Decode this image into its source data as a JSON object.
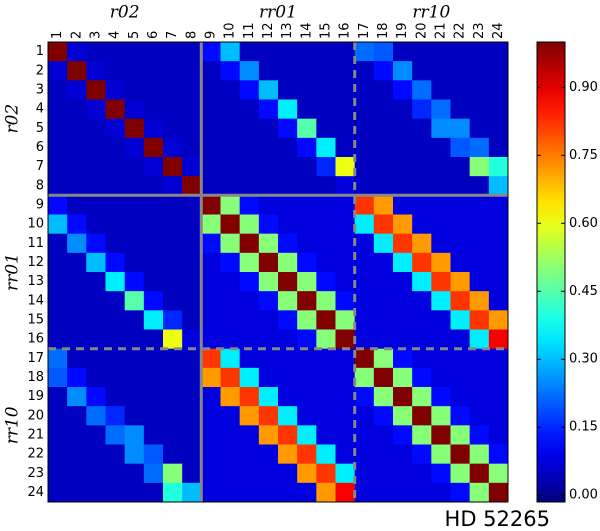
{
  "chart_data": {
    "type": "heatmap",
    "colormap": "jet",
    "group_labels": [
      "r02",
      "rr01",
      "rr10"
    ],
    "labels": [
      "1",
      "2",
      "3",
      "4",
      "5",
      "6",
      "7",
      "8",
      "9",
      "10",
      "11",
      "12",
      "13",
      "14",
      "15",
      "16",
      "17",
      "18",
      "19",
      "20",
      "21",
      "22",
      "23",
      "24"
    ],
    "values": [
      [
        1,
        0.07,
        0.05,
        0.05,
        0.05,
        0.05,
        0.05,
        0.05,
        0.12,
        0.3,
        0.05,
        0.05,
        0.05,
        0.05,
        0.05,
        0.05,
        0.22,
        0.2,
        0.05,
        0.05,
        0.05,
        0.05,
        0.05,
        0.05
      ],
      [
        0.07,
        1,
        0.07,
        0.05,
        0.05,
        0.05,
        0.05,
        0.05,
        0.05,
        0.12,
        0.25,
        0.05,
        0.05,
        0.05,
        0.05,
        0.05,
        0.05,
        0.12,
        0.25,
        0.05,
        0.05,
        0.05,
        0.05,
        0.05
      ],
      [
        0.05,
        0.07,
        1,
        0.07,
        0.05,
        0.05,
        0.05,
        0.05,
        0.05,
        0.05,
        0.12,
        0.3,
        0.05,
        0.05,
        0.05,
        0.05,
        0.05,
        0.05,
        0.12,
        0.22,
        0.05,
        0.05,
        0.05,
        0.05
      ],
      [
        0.05,
        0.05,
        0.07,
        1,
        0.07,
        0.05,
        0.05,
        0.05,
        0.05,
        0.05,
        0.05,
        0.12,
        0.35,
        0.05,
        0.05,
        0.05,
        0.05,
        0.05,
        0.05,
        0.15,
        0.22,
        0.05,
        0.05,
        0.05
      ],
      [
        0.05,
        0.05,
        0.05,
        0.07,
        1,
        0.07,
        0.05,
        0.05,
        0.05,
        0.05,
        0.05,
        0.05,
        0.12,
        0.45,
        0.05,
        0.05,
        0.05,
        0.05,
        0.05,
        0.05,
        0.25,
        0.25,
        0.05,
        0.05
      ],
      [
        0.05,
        0.05,
        0.05,
        0.05,
        0.07,
        1,
        0.07,
        0.05,
        0.05,
        0.05,
        0.05,
        0.05,
        0.05,
        0.12,
        0.35,
        0.05,
        0.05,
        0.05,
        0.05,
        0.05,
        0.05,
        0.2,
        0.22,
        0.05
      ],
      [
        0.05,
        0.05,
        0.05,
        0.05,
        0.05,
        0.07,
        1,
        0.07,
        0.05,
        0.05,
        0.05,
        0.05,
        0.05,
        0.05,
        0.15,
        0.6,
        0.05,
        0.05,
        0.05,
        0.05,
        0.05,
        0.05,
        0.5,
        0.4
      ],
      [
        0.05,
        0.05,
        0.05,
        0.05,
        0.05,
        0.05,
        0.07,
        1,
        0.05,
        0.05,
        0.05,
        0.05,
        0.05,
        0.05,
        0.05,
        0.08,
        0.05,
        0.05,
        0.05,
        0.05,
        0.05,
        0.05,
        0.05,
        0.3
      ],
      [
        0.12,
        0.05,
        0.05,
        0.05,
        0.05,
        0.05,
        0.05,
        0.05,
        1,
        0.5,
        0.12,
        0.08,
        0.08,
        0.08,
        0.08,
        0.08,
        0.82,
        0.72,
        0.08,
        0.08,
        0.08,
        0.08,
        0.08,
        0.08
      ],
      [
        0.3,
        0.12,
        0.05,
        0.05,
        0.05,
        0.05,
        0.05,
        0.05,
        0.5,
        1,
        0.5,
        0.12,
        0.08,
        0.08,
        0.08,
        0.08,
        0.35,
        0.82,
        0.72,
        0.08,
        0.08,
        0.08,
        0.08,
        0.08
      ],
      [
        0.05,
        0.25,
        0.12,
        0.05,
        0.05,
        0.05,
        0.05,
        0.05,
        0.12,
        0.5,
        1,
        0.5,
        0.12,
        0.08,
        0.08,
        0.08,
        0.08,
        0.35,
        0.82,
        0.72,
        0.08,
        0.08,
        0.08,
        0.08
      ],
      [
        0.05,
        0.05,
        0.3,
        0.12,
        0.05,
        0.05,
        0.05,
        0.05,
        0.08,
        0.12,
        0.5,
        1,
        0.5,
        0.12,
        0.08,
        0.08,
        0.08,
        0.08,
        0.35,
        0.82,
        0.72,
        0.08,
        0.08,
        0.08
      ],
      [
        0.05,
        0.05,
        0.05,
        0.35,
        0.12,
        0.05,
        0.05,
        0.05,
        0.08,
        0.08,
        0.12,
        0.5,
        1,
        0.5,
        0.12,
        0.08,
        0.08,
        0.08,
        0.08,
        0.35,
        0.82,
        0.72,
        0.08,
        0.08
      ],
      [
        0.05,
        0.05,
        0.05,
        0.05,
        0.45,
        0.12,
        0.05,
        0.05,
        0.08,
        0.08,
        0.08,
        0.12,
        0.5,
        1,
        0.5,
        0.12,
        0.08,
        0.08,
        0.08,
        0.08,
        0.35,
        0.82,
        0.72,
        0.08
      ],
      [
        0.05,
        0.05,
        0.05,
        0.05,
        0.05,
        0.35,
        0.15,
        0.05,
        0.08,
        0.08,
        0.08,
        0.08,
        0.12,
        0.5,
        1,
        0.5,
        0.08,
        0.08,
        0.08,
        0.08,
        0.08,
        0.35,
        0.82,
        0.72
      ],
      [
        0.05,
        0.05,
        0.05,
        0.05,
        0.05,
        0.05,
        0.6,
        0.08,
        0.08,
        0.08,
        0.08,
        0.08,
        0.08,
        0.12,
        0.5,
        1,
        0.08,
        0.08,
        0.08,
        0.08,
        0.08,
        0.08,
        0.35,
        0.88
      ],
      [
        0.22,
        0.05,
        0.05,
        0.05,
        0.05,
        0.05,
        0.05,
        0.05,
        0.82,
        0.35,
        0.08,
        0.08,
        0.08,
        0.08,
        0.08,
        0.08,
        1,
        0.5,
        0.12,
        0.08,
        0.08,
        0.08,
        0.08,
        0.08
      ],
      [
        0.2,
        0.12,
        0.05,
        0.05,
        0.05,
        0.05,
        0.05,
        0.05,
        0.72,
        0.82,
        0.35,
        0.08,
        0.08,
        0.08,
        0.08,
        0.08,
        0.5,
        1,
        0.5,
        0.12,
        0.08,
        0.08,
        0.08,
        0.08
      ],
      [
        0.05,
        0.25,
        0.12,
        0.05,
        0.05,
        0.05,
        0.05,
        0.05,
        0.08,
        0.72,
        0.82,
        0.35,
        0.08,
        0.08,
        0.08,
        0.08,
        0.12,
        0.5,
        1,
        0.5,
        0.12,
        0.08,
        0.08,
        0.08
      ],
      [
        0.05,
        0.05,
        0.22,
        0.15,
        0.05,
        0.05,
        0.05,
        0.05,
        0.08,
        0.08,
        0.72,
        0.82,
        0.35,
        0.08,
        0.08,
        0.08,
        0.08,
        0.12,
        0.5,
        1,
        0.5,
        0.12,
        0.08,
        0.08
      ],
      [
        0.05,
        0.05,
        0.05,
        0.22,
        0.25,
        0.05,
        0.05,
        0.05,
        0.08,
        0.08,
        0.08,
        0.72,
        0.82,
        0.35,
        0.08,
        0.08,
        0.08,
        0.08,
        0.12,
        0.5,
        1,
        0.5,
        0.12,
        0.08
      ],
      [
        0.05,
        0.05,
        0.05,
        0.05,
        0.25,
        0.2,
        0.05,
        0.05,
        0.08,
        0.08,
        0.08,
        0.08,
        0.72,
        0.82,
        0.35,
        0.08,
        0.08,
        0.08,
        0.08,
        0.12,
        0.5,
        1,
        0.5,
        0.12
      ],
      [
        0.05,
        0.05,
        0.05,
        0.05,
        0.05,
        0.22,
        0.5,
        0.05,
        0.08,
        0.08,
        0.08,
        0.08,
        0.08,
        0.72,
        0.82,
        0.35,
        0.08,
        0.08,
        0.08,
        0.08,
        0.12,
        0.5,
        1,
        0.5
      ],
      [
        0.05,
        0.05,
        0.05,
        0.05,
        0.05,
        0.05,
        0.4,
        0.3,
        0.08,
        0.08,
        0.08,
        0.08,
        0.08,
        0.08,
        0.72,
        0.88,
        0.08,
        0.08,
        0.08,
        0.08,
        0.08,
        0.12,
        0.5,
        1
      ]
    ],
    "zlim": [
      -0.015,
      1.0
    ],
    "zticks": [
      {
        "value": 0,
        "label": "0.00"
      },
      {
        "value": 0.15,
        "label": "0.15"
      },
      {
        "value": 0.3,
        "label": "0.30"
      },
      {
        "value": 0.45,
        "label": "0.45"
      },
      {
        "value": 0.6,
        "label": "0.60"
      },
      {
        "value": 0.75,
        "label": "0.75"
      },
      {
        "value": 0.9,
        "label": "0.90"
      }
    ],
    "annotation": "HD 52265"
  }
}
